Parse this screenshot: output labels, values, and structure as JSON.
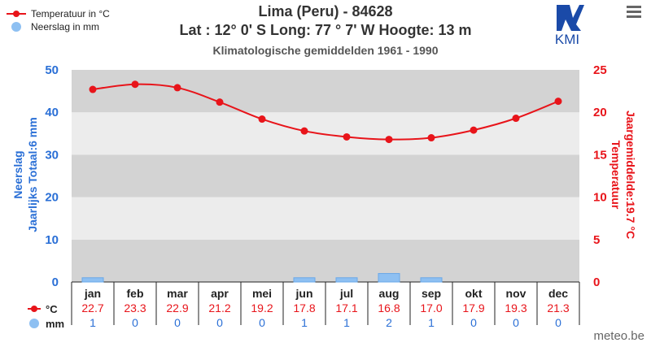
{
  "chart_data": {
    "type": "bar",
    "title": "Lima (Peru) - 84628",
    "subtitle": "Lat : 12° 0' S Long: 77 ° 7' W Hoogte: 13 m",
    "subtitle2": "Klimatologische gemiddelden 1961 - 1990",
    "categories": [
      "jan",
      "feb",
      "mar",
      "apr",
      "mei",
      "jun",
      "jul",
      "aug",
      "sep",
      "okt",
      "nov",
      "dec"
    ],
    "series": [
      {
        "name": "Temperatuur in °C",
        "type": "line",
        "axis": "right",
        "color": "#e8141a",
        "values": [
          22.7,
          23.3,
          22.9,
          21.2,
          19.2,
          17.8,
          17.1,
          16.8,
          17.0,
          17.9,
          19.3,
          21.3
        ]
      },
      {
        "name": "Neerslag in mm",
        "type": "bar",
        "axis": "left",
        "color": "#8ec0f2",
        "values": [
          1,
          0,
          0,
          0,
          0,
          1,
          1,
          2,
          1,
          0,
          0,
          0
        ]
      }
    ],
    "left_axis": {
      "title_line1": "Neerslag",
      "title_line2": "Jaarlijks Totaal:6 mm",
      "ylim": [
        0,
        50
      ],
      "ticks": [
        "0",
        "10",
        "20",
        "30",
        "40",
        "50"
      ]
    },
    "right_axis": {
      "title_line1": "Temperatuur",
      "title_line2": "Jaargemiddelde:19.7 °C",
      "ylim": [
        0,
        25
      ],
      "ticks": [
        "0",
        "5",
        "10",
        "15",
        "20",
        "25"
      ]
    },
    "table": {
      "temp_label": "°C",
      "prec_label": "mm",
      "temp_values": [
        "22.7",
        "23.3",
        "22.9",
        "21.2",
        "19.2",
        "17.8",
        "17.1",
        "16.8",
        "17.0",
        "17.9",
        "19.3",
        "21.3"
      ],
      "prec_values": [
        "1",
        "0",
        "0",
        "0",
        "0",
        "1",
        "1",
        "2",
        "1",
        "0",
        "0",
        "0"
      ]
    },
    "legend": {
      "position": "top-left",
      "items": [
        "Temperatuur in °C",
        "Neerslag in mm"
      ]
    },
    "grid": true
  },
  "branding": {
    "logo_text": "KMI",
    "credit": "meteo.be"
  },
  "menu": {
    "icon": "hamburger-menu-icon"
  },
  "colors": {
    "temp": "#e8141a",
    "prec": "#2a6fd6",
    "bar": "#8ec0f2",
    "band_dark": "#d3d3d3",
    "band_light": "#ececec"
  }
}
